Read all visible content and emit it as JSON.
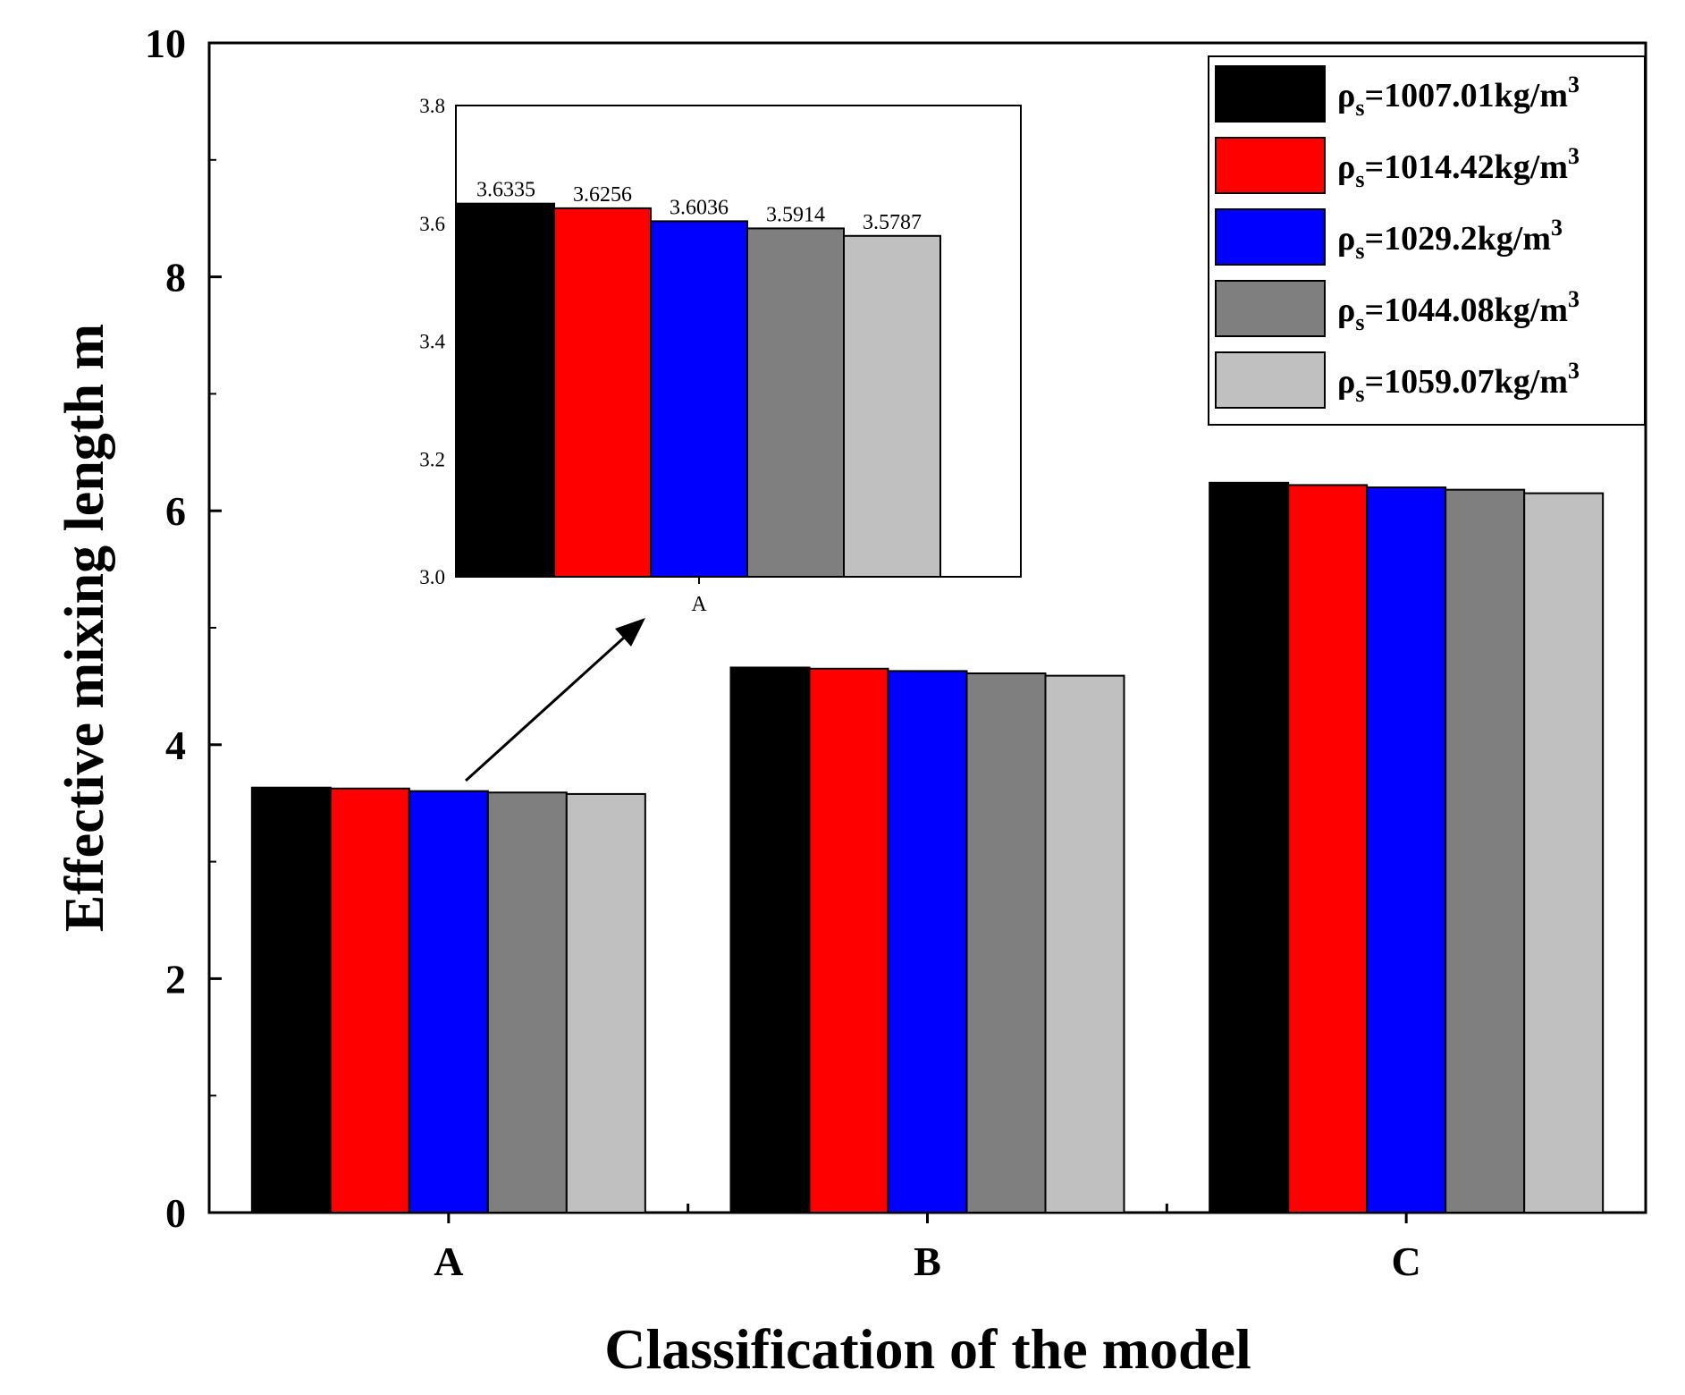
{
  "chart_data": {
    "type": "bar",
    "title": "",
    "xlabel": "Classification of the model",
    "ylabel": "Effective mixing length m",
    "ylim": [
      0,
      10
    ],
    "yticks": [
      "0",
      "2",
      "4",
      "6",
      "8",
      "10"
    ],
    "yticks_values": [
      0,
      2,
      4,
      6,
      8,
      10
    ],
    "categories": [
      "A",
      "B",
      "C"
    ],
    "legend_position": "top-right",
    "series": [
      {
        "name": "ρs=1007.01kg/m3",
        "symbol": "ρ",
        "sub": "s",
        "text": "=1007.01kg/m",
        "sup": "3",
        "color": "#000000",
        "values": [
          3.6335,
          4.66,
          6.24
        ]
      },
      {
        "name": "ρs=1014.42kg/m3",
        "symbol": "ρ",
        "sub": "s",
        "text": "=1014.42kg/m",
        "sup": "3",
        "color": "#ff0000",
        "values": [
          3.6256,
          4.65,
          6.22
        ]
      },
      {
        "name": "ρs=1029.2kg/m3",
        "symbol": "ρ",
        "sub": "s",
        "text": "=1029.2kg/m",
        "sup": "3",
        "color": "#0000ff",
        "values": [
          3.6036,
          4.63,
          6.2
        ]
      },
      {
        "name": "ρs=1044.08kg/m3",
        "symbol": "ρ",
        "sub": "s",
        "text": "=1044.08kg/m",
        "sup": "3",
        "color": "#7f7f7f",
        "values": [
          3.5914,
          4.61,
          6.18
        ]
      },
      {
        "name": "ρs=1059.07kg/m3",
        "symbol": "ρ",
        "sub": "s",
        "text": "=1059.07kg/m",
        "sup": "3",
        "color": "#c0c0c0",
        "values": [
          3.5787,
          4.59,
          6.15
        ]
      }
    ],
    "inset": {
      "category": "A",
      "ylim": [
        3.0,
        3.8
      ],
      "yticks": [
        "3.0",
        "3.2",
        "3.4",
        "3.6",
        "3.8"
      ],
      "yticks_values": [
        3.0,
        3.2,
        3.4,
        3.6,
        3.8
      ],
      "values": [
        3.6335,
        3.6256,
        3.6036,
        3.5914,
        3.5787
      ],
      "labels": [
        "3.6335",
        "3.6256",
        "3.6036",
        "3.5914",
        "3.5787"
      ]
    }
  }
}
